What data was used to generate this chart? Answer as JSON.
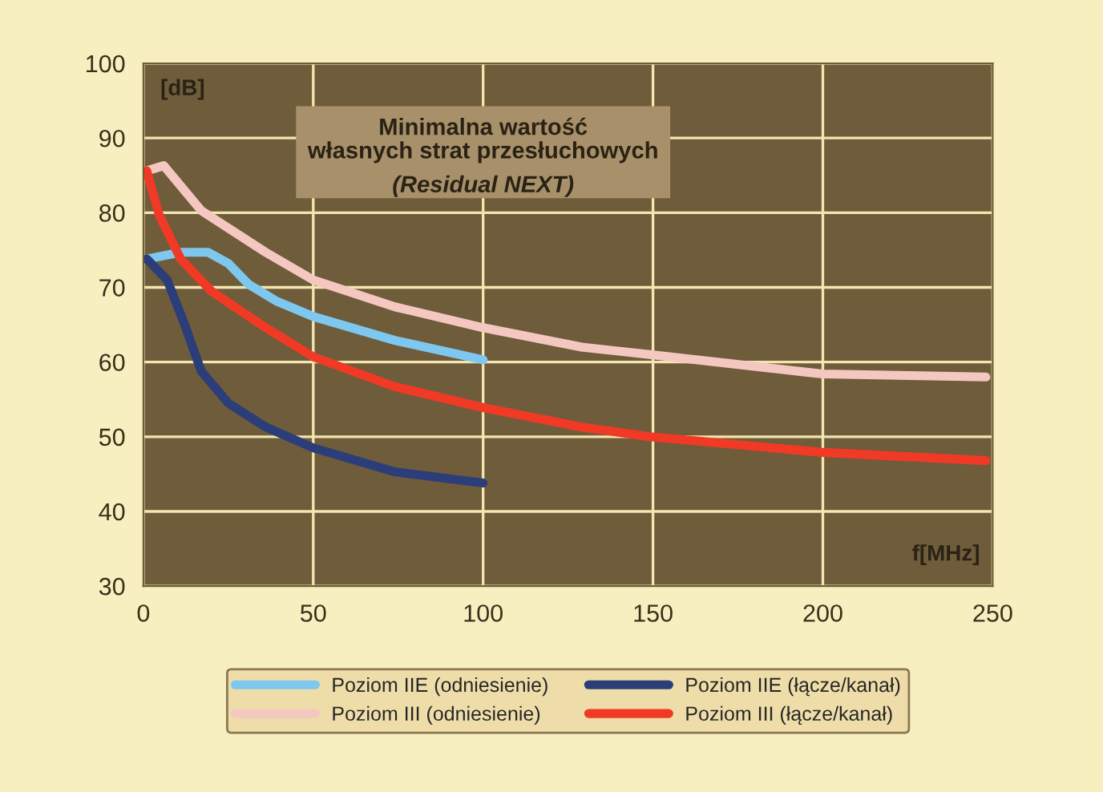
{
  "chart_data": {
    "type": "line",
    "title": "Minimalna wartość\nwłasnych strat przesłuchowych",
    "subtitle": "(Residual NEXT)",
    "xlabel": "f[MHz]",
    "ylabel": "[dB]",
    "xlim": [
      0,
      250
    ],
    "xticks": [
      0,
      50,
      100,
      150,
      200,
      250
    ],
    "ylim": [
      30,
      100
    ],
    "yticks": [
      30,
      40,
      50,
      60,
      70,
      80,
      90,
      100
    ],
    "grid": true,
    "legend": "bottom",
    "line_style": "solid",
    "marker": "none",
    "series": [
      {
        "name": "Poziom IIE (odniesienie)",
        "color": "#7ec8f0",
        "x": [
          1,
          11,
          19,
          25,
          31,
          39,
          50,
          74,
          100
        ],
        "values": [
          73.8,
          74.7,
          74.7,
          73.2,
          70.4,
          68.2,
          66.1,
          62.9,
          60.3
        ]
      },
      {
        "name": "Poziom III (odniesienie)",
        "color": "#f4c7c0",
        "x": [
          1,
          6,
          17,
          36,
          50,
          74,
          100,
          129,
          149,
          200,
          248
        ],
        "values": [
          85.6,
          86.3,
          80.3,
          74.7,
          71,
          67.4,
          64.6,
          62,
          61,
          58.4,
          58
        ]
      },
      {
        "name": "Poziom IIE (łącze/kanał)",
        "color": "#2c3e7a",
        "x": [
          1,
          7,
          12,
          17,
          25,
          36,
          50,
          74,
          100
        ],
        "values": [
          73.8,
          71,
          65.2,
          58.8,
          54.5,
          51.3,
          48.5,
          45.3,
          43.8
        ]
      },
      {
        "name": "Poziom III (łącze/kanał)",
        "color": "#f03a25",
        "x": [
          1,
          4.7,
          11,
          20,
          36,
          50,
          74,
          100,
          129,
          149,
          200,
          248
        ],
        "values": [
          85.6,
          79.6,
          73.8,
          69.5,
          64.6,
          60.7,
          56.7,
          53.9,
          51.3,
          50,
          47.9,
          46.8
        ]
      }
    ]
  }
}
